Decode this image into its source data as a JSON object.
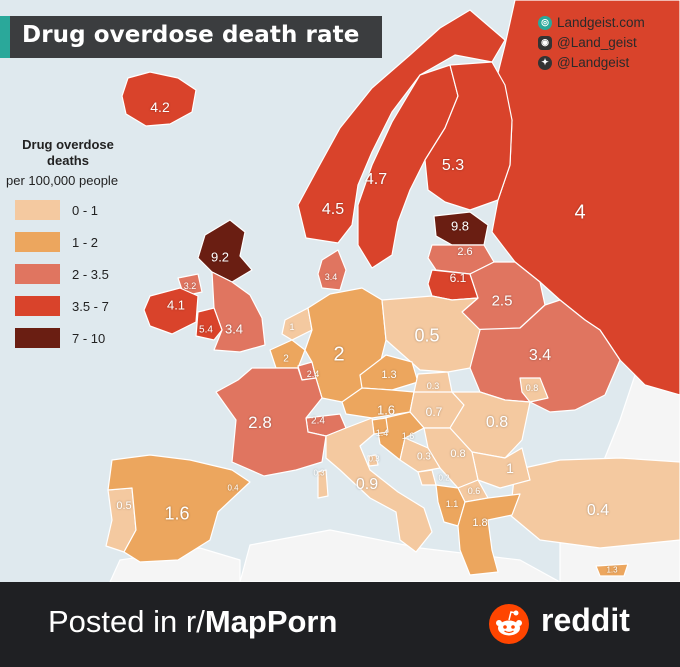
{
  "title": "Drug overdose death rate",
  "social": [
    {
      "icon": "landgeist-globe-icon",
      "text": "Landgeist.com",
      "color": "#2aa89a"
    },
    {
      "icon": "instagram-icon",
      "text": "@Land_geist",
      "color": "#333333"
    },
    {
      "icon": "twitter-icon",
      "text": "@Landgeist",
      "color": "#333333"
    }
  ],
  "legend": {
    "title": "Drug overdose deaths",
    "subtitle": "per 100,000 people",
    "items": [
      {
        "label": "0 - 1",
        "color": "#f4c9a0"
      },
      {
        "label": "1 - 2",
        "color": "#eca65e"
      },
      {
        "label": "2 - 3.5",
        "color": "#e07560"
      },
      {
        "label": "3.5 - 7",
        "color": "#d9432b"
      },
      {
        "label": "7 - 10",
        "color": "#6a1e12"
      }
    ]
  },
  "colors": {
    "sea": "#dfe9ee",
    "non_data_land": "#f5f5f5",
    "border": "#ffffff"
  },
  "regions": [
    {
      "name": "Iceland",
      "value": "4.2",
      "color": "#d9432b"
    },
    {
      "name": "Norway",
      "value": "4.5",
      "color": "#d9432b"
    },
    {
      "name": "Sweden",
      "value": "4.7",
      "color": "#d9432b"
    },
    {
      "name": "Finland",
      "value": "5.3",
      "color": "#d9432b"
    },
    {
      "name": "Russia",
      "value": "4",
      "color": "#d9432b"
    },
    {
      "name": "Estonia",
      "value": "9.8",
      "color": "#6a1e12"
    },
    {
      "name": "Latvia",
      "value": "2.6",
      "color": "#e07560"
    },
    {
      "name": "Lithuania",
      "value": "6.1",
      "color": "#d9432b"
    },
    {
      "name": "Belarus",
      "value": "2.5",
      "color": "#e07560"
    },
    {
      "name": "Ukraine",
      "value": "3.4",
      "color": "#e07560"
    },
    {
      "name": "Moldova",
      "value": "0.8",
      "color": "#f4c9a0"
    },
    {
      "name": "Scotland",
      "value": "9.2",
      "color": "#6a1e12"
    },
    {
      "name": "Northern Ireland",
      "value": "3.2",
      "color": "#e07560"
    },
    {
      "name": "Ireland",
      "value": "4.1",
      "color": "#d9432b"
    },
    {
      "name": "Wales",
      "value": "5.4",
      "color": "#d9432b"
    },
    {
      "name": "England",
      "value": "3.4",
      "color": "#e07560"
    },
    {
      "name": "Denmark",
      "value": "3.4",
      "color": "#e07560"
    },
    {
      "name": "Netherlands",
      "value": "1",
      "color": "#f4c9a0"
    },
    {
      "name": "Belgium",
      "value": "2",
      "color": "#eca65e"
    },
    {
      "name": "Luxembourg",
      "value": "2.4",
      "color": "#e07560"
    },
    {
      "name": "Germany",
      "value": "2",
      "color": "#eca65e"
    },
    {
      "name": "Poland",
      "value": "0.5",
      "color": "#f4c9a0"
    },
    {
      "name": "Czechia",
      "value": "1.3",
      "color": "#eca65e"
    },
    {
      "name": "Slovakia",
      "value": "0.3",
      "color": "#f4c9a0"
    },
    {
      "name": "Austria",
      "value": "1.6",
      "color": "#eca65e"
    },
    {
      "name": "Hungary",
      "value": "0.7",
      "color": "#f4c9a0"
    },
    {
      "name": "Romania",
      "value": "0.8",
      "color": "#f4c9a0"
    },
    {
      "name": "France",
      "value": "2.8",
      "color": "#e07560"
    },
    {
      "name": "Switzerland",
      "value": "2.4",
      "color": "#e07560"
    },
    {
      "name": "Slovenia",
      "value": "1.4",
      "color": "#eca65e"
    },
    {
      "name": "Croatia",
      "value": "1.6",
      "color": "#eca65e"
    },
    {
      "name": "San Marino",
      "value": "0.3",
      "color": "#f4c9a0"
    },
    {
      "name": "Bosnia and Herzegovina",
      "value": "0.3",
      "color": "#f4c9a0"
    },
    {
      "name": "Serbia",
      "value": "0.8",
      "color": "#f4c9a0"
    },
    {
      "name": "Bulgaria",
      "value": "1",
      "color": "#f4c9a0"
    },
    {
      "name": "Montenegro",
      "value": "0.2",
      "color": "#f4c9a0"
    },
    {
      "name": "North Macedonia",
      "value": "0.6",
      "color": "#f4c9a0"
    },
    {
      "name": "Albania",
      "value": "1.1",
      "color": "#eca65e"
    },
    {
      "name": "Greece",
      "value": "1.8",
      "color": "#eca65e"
    },
    {
      "name": "Italy",
      "value": "0.9",
      "color": "#f4c9a0"
    },
    {
      "name": "Corsica",
      "value": "0.3",
      "color": "#f4c9a0"
    },
    {
      "name": "Spain",
      "value": "1.6",
      "color": "#eca65e"
    },
    {
      "name": "Portugal",
      "value": "0.5",
      "color": "#f4c9a0"
    },
    {
      "name": "Andorra",
      "value": "0.4",
      "color": "#f4c9a0"
    },
    {
      "name": "Turkey",
      "value": "0.4",
      "color": "#f4c9a0"
    },
    {
      "name": "Cyprus",
      "value": "1.3",
      "color": "#eca65e"
    }
  ],
  "footer": {
    "posted_prefix": "Posted in r/",
    "subreddit": "MapPorn",
    "brand": "reddit"
  }
}
